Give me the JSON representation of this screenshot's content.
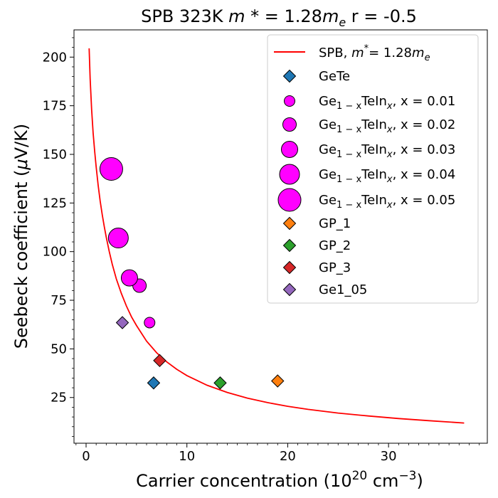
{
  "chart_data": {
    "type": "scatter",
    "title": {
      "main": "SPB 323K ",
      "mstar": "m *",
      "eq1": " = 1.28",
      "me": "m",
      "me_sub": "e",
      "rpart": "  r = -0.5"
    },
    "xlabel": {
      "main": "Carrier concentration (10",
      "sup": "20",
      "unit": " cm",
      "unit_sup": "−3",
      "close": ")"
    },
    "ylabel": {
      "main": "Seebeck coefficient (",
      "mu": "μ",
      "rest": "V/K)"
    },
    "xlim": [
      -1.2,
      39.8
    ],
    "ylim": [
      1.5,
      214
    ],
    "xticks": [
      0,
      10,
      20,
      30
    ],
    "yticks": [
      25,
      50,
      75,
      100,
      125,
      150,
      175,
      200
    ],
    "grid": false,
    "legend_position": "top-right",
    "colors": {
      "curve": "#ff0000",
      "gete": "#1f77b4",
      "ge_te_in": "#ff00ff",
      "gp1": "#ff7f0e",
      "gp2": "#2ca02c",
      "gp3": "#d62728",
      "ge1_05": "#9467bd"
    },
    "curve": {
      "name": {
        "main": "SPB, ",
        "m": "m",
        "sup": "*",
        "eq": "= 1.28",
        "me": "m",
        "sub": "e"
      },
      "x": [
        0.3,
        0.4,
        0.55,
        0.7,
        0.85,
        1.0,
        1.2,
        1.4,
        1.6,
        1.8,
        2.0,
        2.3,
        2.6,
        3.0,
        3.5,
        4.0,
        4.5,
        5.0,
        6.0,
        7.0,
        8.0,
        9.0,
        10.0,
        12.0,
        14.0,
        16.0,
        18.0,
        20.0,
        22.0,
        25.0,
        28.0,
        31.0,
        34.0,
        37.5
      ],
      "y": [
        204.5,
        189,
        173,
        161,
        151.5,
        143.5,
        134,
        126,
        119,
        113,
        107.5,
        100,
        93.5,
        86,
        78.5,
        72,
        66.5,
        62,
        54,
        48,
        43.3,
        39.5,
        36.3,
        31.3,
        27.6,
        24.7,
        22.4,
        20.5,
        18.9,
        17.0,
        15.5,
        14.2,
        13.1,
        11.9
      ]
    },
    "series": [
      {
        "name": {
          "main": "GeTe"
        },
        "marker": "diamond",
        "color_key": "gete",
        "size": 17,
        "points": [
          [
            6.7,
            32.5
          ]
        ]
      },
      {
        "name": {
          "pre": "Ge",
          "sub1": "1 − x",
          "mid": "TeIn",
          "sub2": "x",
          "post": ", x = 0.01"
        },
        "marker": "circle",
        "color_key": "ge_te_in",
        "size": 15,
        "points": [
          [
            6.3,
            63.5
          ]
        ]
      },
      {
        "name": {
          "pre": "Ge",
          "sub1": "1 − x",
          "mid": "TeIn",
          "sub2": "x",
          "post": ", x = 0.02"
        },
        "marker": "circle",
        "color_key": "ge_te_in",
        "size": 19,
        "points": [
          [
            5.3,
            82.5
          ]
        ]
      },
      {
        "name": {
          "pre": "Ge",
          "sub1": "1 − x",
          "mid": "TeIn",
          "sub2": "x",
          "post": ", x = 0.03"
        },
        "marker": "circle",
        "color_key": "ge_te_in",
        "size": 23,
        "points": [
          [
            4.3,
            86.5
          ]
        ]
      },
      {
        "name": {
          "pre": "Ge",
          "sub1": "1 − x",
          "mid": "TeIn",
          "sub2": "x",
          "post": ", x = 0.04"
        },
        "marker": "circle",
        "color_key": "ge_te_in",
        "size": 28,
        "points": [
          [
            3.2,
            107
          ]
        ]
      },
      {
        "name": {
          "pre": "Ge",
          "sub1": "1 − x",
          "mid": "TeIn",
          "sub2": "x",
          "post": ", x = 0.05"
        },
        "marker": "circle",
        "color_key": "ge_te_in",
        "size": 32,
        "points": [
          [
            2.5,
            142.5
          ]
        ]
      },
      {
        "name": {
          "main": "GP_1"
        },
        "marker": "diamond",
        "color_key": "gp1",
        "size": 17,
        "points": [
          [
            19.0,
            33.5
          ]
        ]
      },
      {
        "name": {
          "main": "GP_2"
        },
        "marker": "diamond",
        "color_key": "gp2",
        "size": 17,
        "points": [
          [
            13.3,
            32.5
          ]
        ]
      },
      {
        "name": {
          "main": "GP_3"
        },
        "marker": "diamond",
        "color_key": "gp3",
        "size": 17,
        "points": [
          [
            7.3,
            44
          ]
        ]
      },
      {
        "name": {
          "main": "Ge1_05"
        },
        "marker": "diamond",
        "color_key": "ge1_05",
        "size": 17,
        "points": [
          [
            3.6,
            63.5
          ]
        ]
      }
    ]
  }
}
